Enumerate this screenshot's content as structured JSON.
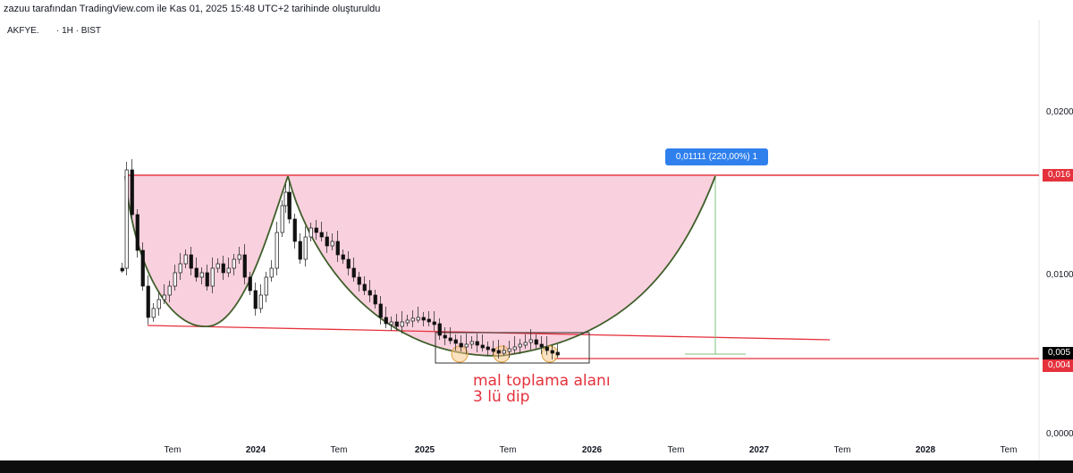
{
  "header": {
    "caption": "zazuu tarafından TradingView.com ile Kas 01, 2025 15:48 UTC+2 tarihinde oluşturuldu"
  },
  "symbol": {
    "label": "AKFYE.       · 1H · BIST"
  },
  "price_axis": {
    "ticks": [
      "0,0200",
      "0,0100",
      "0,0000"
    ],
    "badges": [
      {
        "text": "0,016",
        "color": "#e5313c"
      },
      {
        "text": "0,005",
        "color": "#000000"
      },
      {
        "text": "0,004",
        "color": "#e5313c"
      }
    ]
  },
  "time_axis": {
    "labels": [
      {
        "text": "Tem",
        "year": false
      },
      {
        "text": "2024",
        "year": true
      },
      {
        "text": "Tem",
        "year": false
      },
      {
        "text": "2025",
        "year": true
      },
      {
        "text": "Tem",
        "year": false
      },
      {
        "text": "2026",
        "year": true
      },
      {
        "text": "Tem",
        "year": false
      },
      {
        "text": "2027",
        "year": true
      },
      {
        "text": "Tem",
        "year": false
      },
      {
        "text": "2028",
        "year": true
      },
      {
        "text": "Tem",
        "year": false
      }
    ]
  },
  "measure_label": "0,01111 (220,00%) 1",
  "annotation": {
    "line1": "mal toplama alanı",
    "line2": "3 lü dip"
  },
  "colors": {
    "red": "#e5313c",
    "curve": "#3f5f2a",
    "fill": "#f8c8d8",
    "measure": "#2f80ed"
  }
}
